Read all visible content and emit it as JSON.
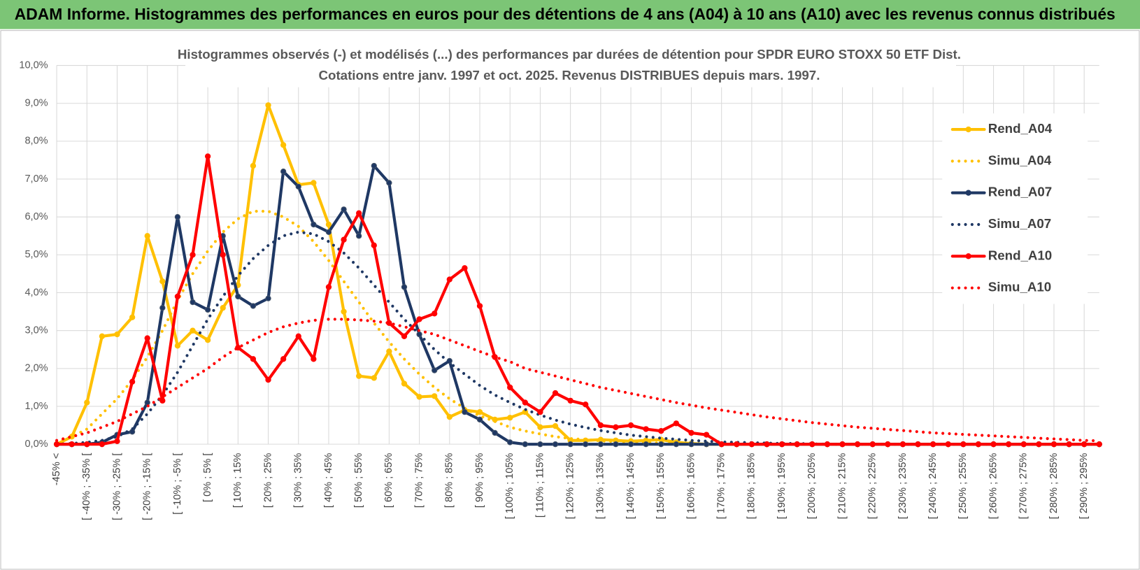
{
  "header": {
    "title": "ADAM Informe. Histogrammes des performances en euros pour des détentions de 4 ans (A04) à 10 ans (A10) avec les revenus connus distribués"
  },
  "chart_data": {
    "type": "line",
    "title": "Histogrammes observés (-) et modélisés (...) des performances par durées de détention pour SPDR EURO STOXX 50 ETF Dist.",
    "subtitle": "Cotations entre janv. 1997 et oct. 2025.  Revenus DISTRIBUES depuis mars. 1997.",
    "categories": [
      "-45% <",
      null,
      "[ -40% ; -35% [",
      null,
      "[ -30% ; -25% [",
      null,
      "[ -20% ; -15% [",
      null,
      "[ -10% ; -5% [",
      null,
      "[ 0% ; 5% [",
      null,
      "[ 10% ; 15%",
      null,
      "[ 20% ; 25%",
      null,
      "[ 30% ; 35%",
      null,
      "[ 40% ; 45%",
      null,
      "[ 50% ; 55%",
      null,
      "[ 60% ; 65%",
      null,
      "[ 70% ; 75%",
      null,
      "[ 80% ; 85%",
      null,
      "[ 90% ; 95%",
      null,
      "[ 100% ; 105%",
      null,
      "[ 110% ; 115%",
      null,
      "[ 120% ; 125%",
      null,
      "[ 130% ; 135%",
      null,
      "[ 140% ; 145%",
      null,
      "[ 150% ; 155%",
      null,
      "[ 160% ; 165%",
      null,
      "[ 170% ; 175%",
      null,
      "[ 180% ; 185%",
      null,
      "[ 190% ; 195%",
      null,
      "[ 200% ; 205%",
      null,
      "[ 210% ; 215%",
      null,
      "[ 220% ; 225%",
      null,
      "[ 230% ; 235%",
      null,
      "[ 240% ; 245%",
      null,
      "[ 250% ; 255%",
      null,
      "[ 260% ; 265%",
      null,
      "[ 270% ; 275%",
      null,
      "[ 280% ; 285%",
      null,
      "[ 290% ; 295%",
      null
    ],
    "ylim": [
      0,
      10
    ],
    "yticks": [
      {
        "value": 0,
        "label": "0,0%"
      },
      {
        "value": 1,
        "label": "1,0%"
      },
      {
        "value": 2,
        "label": "2,0%"
      },
      {
        "value": 3,
        "label": "3,0%"
      },
      {
        "value": 4,
        "label": "4,0%"
      },
      {
        "value": 5,
        "label": "5,0%"
      },
      {
        "value": 6,
        "label": "6,0%"
      },
      {
        "value": 7,
        "label": "7,0%"
      },
      {
        "value": 8,
        "label": "8,0%"
      },
      {
        "value": 9,
        "label": "9,0%"
      },
      {
        "value": 10,
        "label": "10,0%"
      }
    ],
    "grid": true,
    "legend": "right",
    "series": [
      {
        "name": "Rend_A04",
        "color": "#ffc000",
        "dash": "solid",
        "values": [
          0,
          0.2,
          1.1,
          2.85,
          2.9,
          3.35,
          5.5,
          4.3,
          2.6,
          3.0,
          2.75,
          3.6,
          4.2,
          7.35,
          8.95,
          7.9,
          6.85,
          6.9,
          5.8,
          3.5,
          1.8,
          1.75,
          2.45,
          1.6,
          1.25,
          1.27,
          0.72,
          0.9,
          0.85,
          0.65,
          0.7,
          0.85,
          0.45,
          0.48,
          0.1,
          0.1,
          0.12,
          0.1,
          0.08,
          0.1,
          0.12,
          0.05,
          0.02,
          0,
          0,
          0,
          0,
          0,
          0,
          0,
          0,
          0,
          0,
          0,
          0,
          0,
          0,
          0,
          0,
          0,
          0,
          0,
          0,
          0,
          0,
          0,
          0,
          0,
          0,
          0
        ]
      },
      {
        "name": "Simu_A04",
        "color": "#ffc000",
        "dash": "dotted",
        "values": [
          0.05,
          0.2,
          0.4,
          0.8,
          1.2,
          1.7,
          2.3,
          3.0,
          3.8,
          4.5,
          5.1,
          5.6,
          5.95,
          6.15,
          6.15,
          6.0,
          5.75,
          5.35,
          4.85,
          4.3,
          3.75,
          3.2,
          2.7,
          2.25,
          1.85,
          1.5,
          1.2,
          0.95,
          0.75,
          0.6,
          0.45,
          0.35,
          0.27,
          0.2,
          0.15,
          0.12,
          0.09,
          0.07,
          0.05,
          0.04,
          0.03,
          0.02,
          0.01,
          0,
          0,
          0,
          0,
          0,
          0,
          0,
          0,
          0,
          0,
          0,
          0,
          0,
          0,
          0,
          0,
          0,
          0,
          0,
          0,
          0,
          0,
          0,
          0,
          0,
          0,
          0
        ]
      },
      {
        "name": "Rend_A07",
        "color": "#1f3864",
        "dash": "solid",
        "values": [
          0,
          0,
          0,
          0.05,
          0.25,
          0.33,
          1.1,
          3.6,
          6.0,
          3.75,
          3.55,
          5.5,
          3.9,
          3.65,
          3.85,
          7.2,
          6.8,
          5.8,
          5.6,
          6.2,
          5.5,
          7.35,
          6.9,
          4.15,
          2.9,
          1.95,
          2.2,
          0.85,
          0.65,
          0.3,
          0.05,
          0,
          0,
          0,
          0,
          0,
          0,
          0,
          0,
          0,
          0,
          0,
          0,
          0,
          0,
          0,
          0,
          0,
          0,
          0,
          0,
          0,
          0,
          0,
          0,
          0,
          0,
          0,
          0,
          0,
          0,
          0,
          0,
          0,
          0,
          0,
          0,
          0,
          0,
          0
        ]
      },
      {
        "name": "Simu_A07",
        "color": "#1f3864",
        "dash": "dotted",
        "values": [
          0,
          0.02,
          0.05,
          0.1,
          0.2,
          0.4,
          0.8,
          1.3,
          1.9,
          2.6,
          3.3,
          3.9,
          4.45,
          4.9,
          5.25,
          5.5,
          5.6,
          5.55,
          5.35,
          5.05,
          4.65,
          4.2,
          3.75,
          3.3,
          2.9,
          2.5,
          2.15,
          1.85,
          1.55,
          1.3,
          1.1,
          0.92,
          0.77,
          0.64,
          0.53,
          0.44,
          0.36,
          0.3,
          0.24,
          0.2,
          0.16,
          0.13,
          0.1,
          0.08,
          0.06,
          0.05,
          0.04,
          0.03,
          0.02,
          0.02,
          0.01,
          0,
          0,
          0,
          0,
          0,
          0,
          0,
          0,
          0,
          0,
          0,
          0,
          0,
          0,
          0,
          0,
          0,
          0,
          0
        ]
      },
      {
        "name": "Rend_A10",
        "color": "#ff0000",
        "dash": "solid",
        "values": [
          0,
          0,
          0,
          0,
          0.08,
          1.65,
          2.8,
          1.15,
          3.9,
          5.0,
          7.6,
          5.0,
          2.55,
          2.25,
          1.7,
          2.25,
          2.85,
          2.25,
          4.15,
          5.4,
          6.1,
          5.25,
          3.2,
          2.85,
          3.3,
          3.45,
          4.35,
          4.65,
          3.65,
          2.3,
          1.5,
          1.1,
          0.85,
          1.35,
          1.15,
          1.05,
          0.5,
          0.45,
          0.5,
          0.4,
          0.35,
          0.55,
          0.3,
          0.25,
          0,
          0,
          0,
          0,
          0,
          0,
          0,
          0,
          0,
          0,
          0,
          0,
          0,
          0,
          0,
          0,
          0,
          0,
          0,
          0,
          0,
          0,
          0,
          0,
          0,
          0
        ]
      },
      {
        "name": "Simu_A10",
        "color": "#ff0000",
        "dash": "dotted",
        "values": [
          0.1,
          0.2,
          0.3,
          0.45,
          0.6,
          0.8,
          1.0,
          1.25,
          1.5,
          1.75,
          2.0,
          2.3,
          2.55,
          2.75,
          2.95,
          3.1,
          3.2,
          3.27,
          3.3,
          3.3,
          3.28,
          3.25,
          3.2,
          3.1,
          3.0,
          2.9,
          2.75,
          2.6,
          2.45,
          2.3,
          2.18,
          2.0,
          1.9,
          1.8,
          1.7,
          1.6,
          1.5,
          1.42,
          1.34,
          1.26,
          1.18,
          1.1,
          1.03,
          0.96,
          0.9,
          0.84,
          0.78,
          0.72,
          0.67,
          0.62,
          0.57,
          0.53,
          0.49,
          0.45,
          0.42,
          0.39,
          0.36,
          0.33,
          0.3,
          0.28,
          0.26,
          0.24,
          0.22,
          0.2,
          0.18,
          0.16,
          0.14,
          0.12,
          0.1,
          0.09
        ]
      }
    ]
  }
}
